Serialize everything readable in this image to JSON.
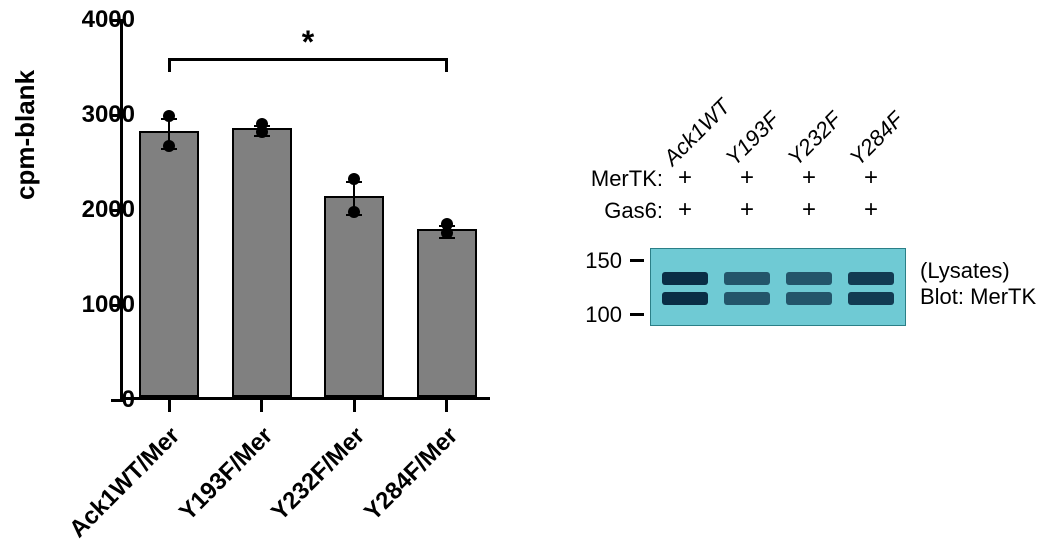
{
  "bar_chart": {
    "type": "bar",
    "yaxis_label": "cpm-blank",
    "ylim": [
      0,
      4000
    ],
    "ytick_step": 1000,
    "yticks": [
      0,
      1000,
      2000,
      3000,
      4000
    ],
    "categories": [
      "Ack1WT/Mer",
      "Y193F/Mer",
      "Y232F/Mer",
      "Y284F/Mer"
    ],
    "values": [
      2800,
      2830,
      2120,
      1770
    ],
    "points": [
      [
        2640,
        2960
      ],
      [
        2870,
        2790
      ],
      [
        1950,
        2290
      ],
      [
        1730,
        1820
      ]
    ],
    "err": [
      160,
      50,
      170,
      60
    ],
    "bar_color": "#808080",
    "bar_border": "#000000",
    "bar_width": 0.65,
    "dot_color": "#000000",
    "background_color": "#ffffff",
    "axis_color": "#000000",
    "label_fontsize": 24,
    "tick_fontsize": 24,
    "sig": {
      "from": 0,
      "to": 3,
      "symbol": "*",
      "y": 3600
    }
  },
  "blot": {
    "lane_labels": [
      "Ack1WT",
      "Y193F",
      "Y232F",
      "Y284F"
    ],
    "rows": [
      {
        "label": "MerTK:",
        "marks": [
          "+",
          "+",
          "+",
          "+"
        ]
      },
      {
        "label": "Gas6:",
        "marks": [
          "+",
          "+",
          "+",
          "+"
        ]
      }
    ],
    "mw_markers": [
      150,
      100
    ],
    "side_labels": [
      "(Lysates)",
      "Blot: MerTK"
    ],
    "box_color": "#6fcad4",
    "box_border": "#2b7f87",
    "bands": [
      {
        "lane": 0,
        "intensity": 1.0
      },
      {
        "lane": 1,
        "intensity": 0.55
      },
      {
        "lane": 2,
        "intensity": 0.55
      },
      {
        "lane": 3,
        "intensity": 0.85
      }
    ],
    "band_color_dark": "#0a2e46",
    "band_color_light": "#3e6a84",
    "label_fontsize": 22
  }
}
